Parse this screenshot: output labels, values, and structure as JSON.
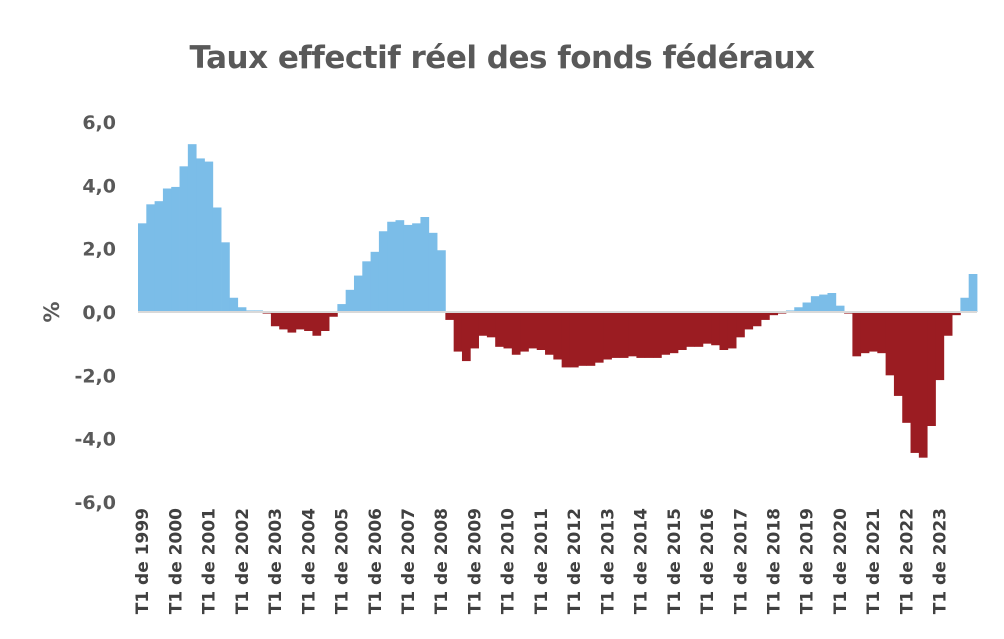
{
  "chart_data": {
    "type": "bar",
    "title": "Taux effectif réel des fonds fédéraux",
    "xlabel": "",
    "ylabel": "%",
    "ylim": [
      -6,
      6
    ],
    "yticks": [
      "6,0",
      "4,0",
      "2,0",
      "0,0",
      "-2,0",
      "-4,0",
      "-6,0"
    ],
    "ytick_values": [
      6,
      4,
      2,
      0,
      -2,
      -4,
      -6
    ],
    "grid": false,
    "legend": "none",
    "positive_color": "#7BBDE8",
    "negative_color": "#9B1C22",
    "x_tick_labels": [
      "T1 de 1999",
      "T1 de 2000",
      "T1 de 2001",
      "T1 de 2002",
      "T1 de 2003",
      "T1 de 2004",
      "T1 de 2005",
      "T1 de 2006",
      "T1 de 2007",
      "T1 de 2008",
      "T1 de 2009",
      "T1 de 2010",
      "T1 de 2011",
      "T1 de 2012",
      "T1 de 2013",
      "T1 de 2014",
      "T1 de 2015",
      "T1 de 2016",
      "T1 de 2017",
      "T1 de 2018",
      "T1 de 2019",
      "T1 de 2020",
      "T1 de 2021",
      "T1 de 2022",
      "T1 de 2023"
    ],
    "values": [
      2.8,
      3.4,
      3.5,
      3.9,
      3.95,
      4.6,
      5.3,
      4.85,
      4.75,
      3.3,
      2.2,
      0.45,
      0.15,
      0.05,
      0.05,
      -0.05,
      -0.45,
      -0.55,
      -0.65,
      -0.55,
      -0.6,
      -0.75,
      -0.6,
      -0.15,
      0.25,
      0.7,
      1.15,
      1.6,
      1.9,
      2.55,
      2.85,
      2.9,
      2.75,
      2.8,
      3.0,
      2.5,
      1.95,
      -0.25,
      -1.25,
      -1.55,
      -1.15,
      -0.75,
      -0.8,
      -1.1,
      -1.15,
      -1.35,
      -1.25,
      -1.15,
      -1.2,
      -1.35,
      -1.5,
      -1.75,
      -1.75,
      -1.7,
      -1.7,
      -1.6,
      -1.5,
      -1.45,
      -1.45,
      -1.4,
      -1.45,
      -1.45,
      -1.45,
      -1.35,
      -1.3,
      -1.2,
      -1.1,
      -1.1,
      -1.0,
      -1.05,
      -1.2,
      -1.15,
      -0.8,
      -0.55,
      -0.45,
      -0.25,
      -0.1,
      -0.05,
      0.05,
      0.15,
      0.3,
      0.5,
      0.55,
      0.6,
      0.2,
      -0.05,
      -1.4,
      -1.3,
      -1.25,
      -1.3,
      -2.0,
      -2.65,
      -3.5,
      -4.45,
      -4.6,
      -3.6,
      -2.15,
      -0.75,
      -0.1,
      0.45,
      1.2
    ]
  }
}
